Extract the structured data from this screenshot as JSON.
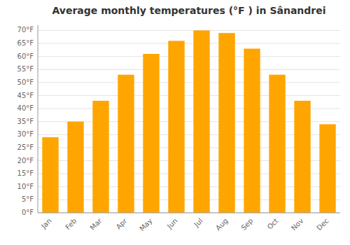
{
  "chart_data": {
    "type": "bar",
    "title": "Average monthly temperatures (°F ) in Sânandrei",
    "categories": [
      "Jan",
      "Feb",
      "Mar",
      "Apr",
      "May",
      "Jun",
      "Jul",
      "Aug",
      "Sep",
      "Oct",
      "Nov",
      "Dec"
    ],
    "values": [
      29,
      35,
      43,
      53,
      61,
      66,
      70,
      69,
      63,
      53,
      43,
      34
    ],
    "color": "#FFA500",
    "ylim": [
      0,
      72
    ],
    "yticks": [
      {
        "value": 0,
        "label": "0°F"
      },
      {
        "value": 5,
        "label": "5°F"
      },
      {
        "value": 10,
        "label": "10°F"
      },
      {
        "value": 15,
        "label": "15°F"
      },
      {
        "value": 20,
        "label": "20°F"
      },
      {
        "value": 25,
        "label": "25°F"
      },
      {
        "value": 30,
        "label": "30°F"
      },
      {
        "value": 35,
        "label": "35°F"
      },
      {
        "value": 40,
        "label": "40°F"
      },
      {
        "value": 45,
        "label": "45°F"
      },
      {
        "value": 50,
        "label": "50°F"
      },
      {
        "value": 55,
        "label": "55°F"
      },
      {
        "value": 60,
        "label": "60°F"
      },
      {
        "value": 65,
        "label": "65°F"
      },
      {
        "value": 70,
        "label": "70°F"
      }
    ],
    "grid": true
  }
}
